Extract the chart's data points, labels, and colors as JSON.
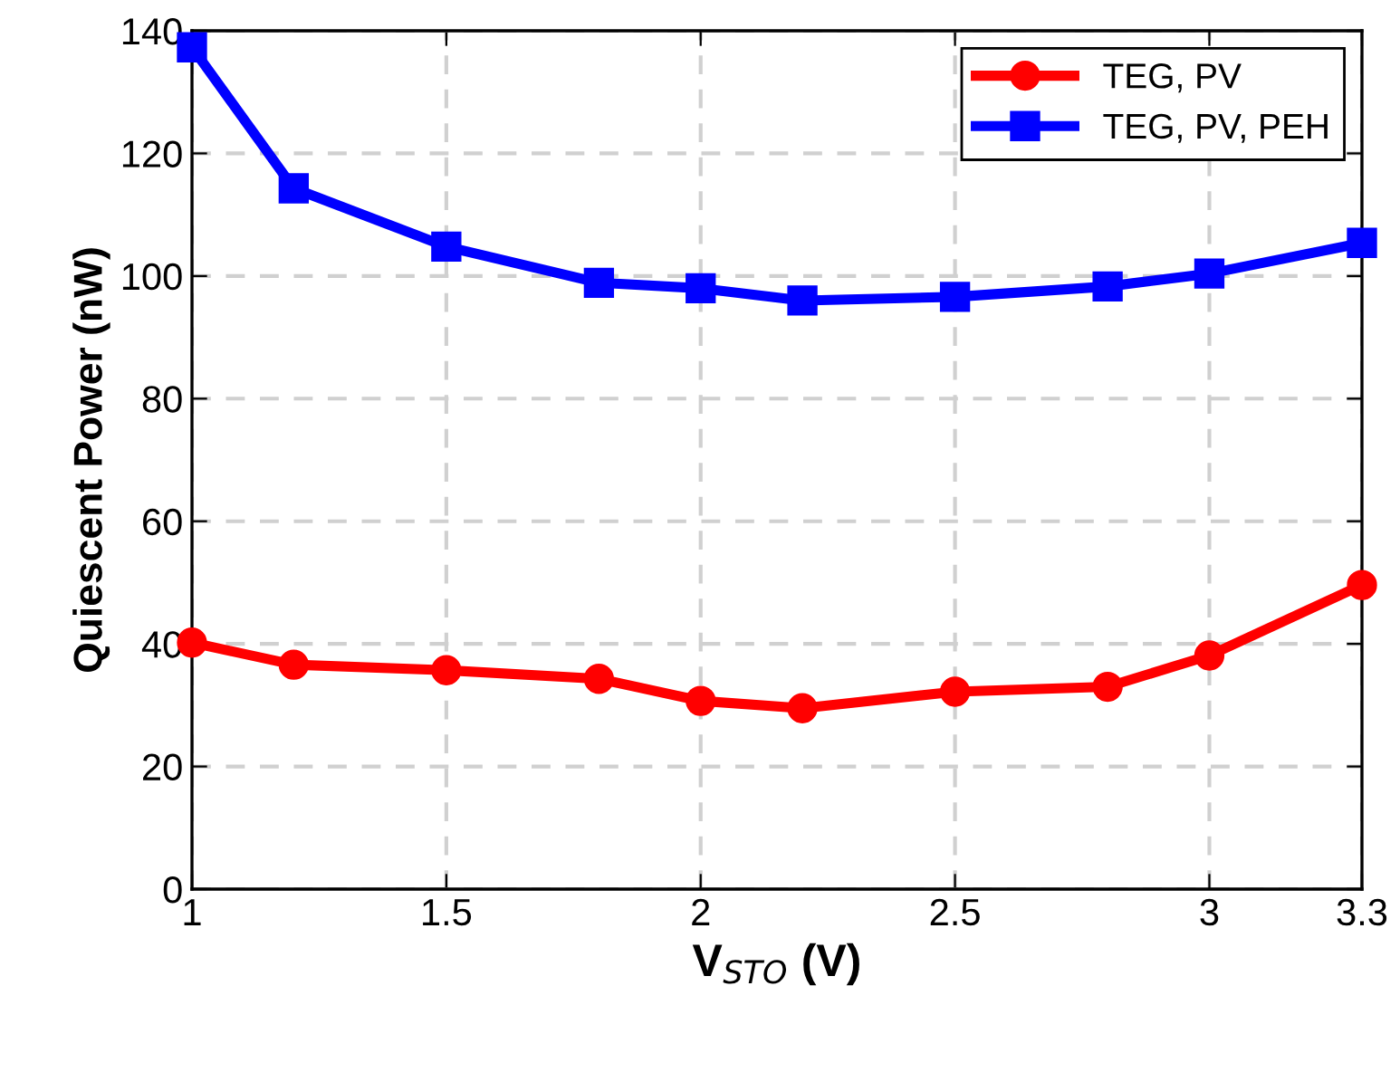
{
  "chart_data": {
    "type": "line",
    "xlabel": "V$_{STO}$ (V)",
    "ylabel": "Quiescent Power (nW)",
    "x": [
      1,
      1.2,
      1.5,
      1.8,
      2,
      2.2,
      2.5,
      2.8,
      3,
      3.3
    ],
    "series": [
      {
        "name": "TEG, PV",
        "color": "#ff0000",
        "marker": "circle",
        "values": [
          40.2,
          36.6,
          35.7,
          34.3,
          30.7,
          29.5,
          32.2,
          33,
          38.1,
          49.6
        ]
      },
      {
        "name": "TEG, PV, PEH",
        "color": "#0000ff",
        "marker": "square",
        "values": [
          137.3,
          114.3,
          104.8,
          98.9,
          98,
          96,
          96.6,
          98.3,
          100.4,
          105.4
        ]
      }
    ],
    "xlim": [
      1,
      3.3
    ],
    "xticks": [
      1,
      1.5,
      2,
      2.5,
      3,
      3.3
    ],
    "ylim": [
      0,
      140
    ],
    "yticks": [
      0,
      20,
      40,
      60,
      80,
      100,
      120,
      140
    ],
    "grid": true,
    "legend": "top right",
    "line_style": "solid"
  }
}
